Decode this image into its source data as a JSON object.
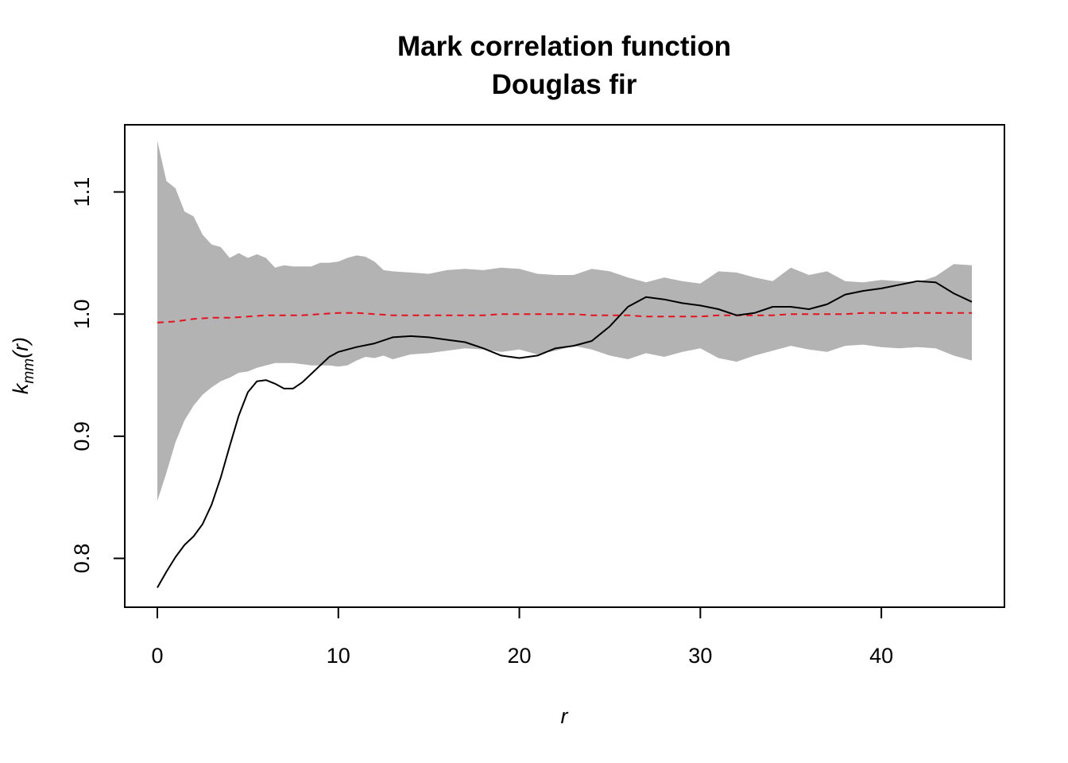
{
  "chart_data": {
    "type": "line",
    "title": "Mark correlation function",
    "subtitle": "Douglas fir",
    "xlabel": "r",
    "ylabel": "k_mm(r)",
    "ylabel_parts": {
      "k": "k",
      "sub": "mm",
      "args": "(r)"
    },
    "xlim": [
      -1.8,
      46.8
    ],
    "ylim": [
      0.76,
      1.155
    ],
    "xticks": [
      0,
      10,
      20,
      30,
      40
    ],
    "xtick_labels": [
      "0",
      "10",
      "20",
      "30",
      "40"
    ],
    "yticks": [
      0.8,
      0.9,
      1.0,
      1.1
    ],
    "ytick_labels": [
      "0.8",
      "0.9",
      "1.0",
      "1.1"
    ],
    "grid": false,
    "colors": {
      "envelope": "#b3b3b3",
      "observed": "#000000",
      "theoretical": "#e8121d"
    },
    "envelope": {
      "x": [
        0,
        0.5,
        1,
        1.5,
        2,
        2.5,
        3,
        3.5,
        4,
        4.5,
        5,
        5.5,
        6,
        6.5,
        7,
        7.5,
        8,
        8.5,
        9,
        9.5,
        10,
        10.5,
        11,
        11.5,
        12,
        12.5,
        13,
        14,
        15,
        16,
        17,
        18,
        19,
        20,
        21,
        22,
        23,
        24,
        25,
        26,
        27,
        28,
        29,
        30,
        31,
        32,
        33,
        34,
        35,
        36,
        37,
        38,
        39,
        40,
        41,
        42,
        43,
        44,
        45
      ],
      "upper": [
        1.142,
        1.109,
        1.103,
        1.084,
        1.08,
        1.065,
        1.057,
        1.055,
        1.046,
        1.05,
        1.046,
        1.049,
        1.046,
        1.038,
        1.04,
        1.039,
        1.039,
        1.039,
        1.042,
        1.042,
        1.043,
        1.046,
        1.048,
        1.047,
        1.043,
        1.036,
        1.035,
        1.034,
        1.033,
        1.036,
        1.037,
        1.036,
        1.038,
        1.037,
        1.033,
        1.032,
        1.032,
        1.037,
        1.035,
        1.03,
        1.026,
        1.03,
        1.027,
        1.025,
        1.035,
        1.034,
        1.03,
        1.027,
        1.038,
        1.032,
        1.035,
        1.027,
        1.026,
        1.028,
        1.027,
        1.026,
        1.031,
        1.041,
        1.04
      ],
      "lower": [
        0.847,
        0.87,
        0.895,
        0.913,
        0.925,
        0.934,
        0.94,
        0.945,
        0.948,
        0.952,
        0.953,
        0.956,
        0.958,
        0.96,
        0.96,
        0.96,
        0.959,
        0.958,
        0.958,
        0.958,
        0.957,
        0.958,
        0.962,
        0.965,
        0.964,
        0.966,
        0.963,
        0.967,
        0.968,
        0.97,
        0.972,
        0.971,
        0.969,
        0.971,
        0.967,
        0.97,
        0.974,
        0.971,
        0.966,
        0.963,
        0.968,
        0.965,
        0.969,
        0.972,
        0.964,
        0.961,
        0.966,
        0.97,
        0.974,
        0.971,
        0.969,
        0.974,
        0.975,
        0.973,
        0.972,
        0.973,
        0.972,
        0.966,
        0.962
      ]
    },
    "series": [
      {
        "x": [
          0,
          0.5,
          1,
          1.5,
          2,
          2.5,
          3,
          3.5,
          4,
          4.5,
          5,
          5.5,
          6,
          6.5,
          7,
          7.5,
          8,
          8.5,
          9,
          9.5,
          10,
          11,
          12,
          13,
          14,
          15,
          16,
          17,
          18,
          19,
          20,
          21,
          22,
          23,
          24,
          25,
          26,
          27,
          28,
          29,
          30,
          31,
          32,
          33,
          34,
          35,
          36,
          37,
          38,
          39,
          40,
          41,
          42,
          43,
          44,
          45
        ],
        "values": [
          0.776,
          0.789,
          0.801,
          0.811,
          0.818,
          0.828,
          0.844,
          0.866,
          0.892,
          0.917,
          0.936,
          0.945,
          0.946,
          0.943,
          0.939,
          0.939,
          0.944,
          0.951,
          0.958,
          0.965,
          0.969,
          0.973,
          0.976,
          0.981,
          0.982,
          0.981,
          0.979,
          0.977,
          0.972,
          0.966,
          0.964,
          0.966,
          0.972,
          0.974,
          0.978,
          0.99,
          1.006,
          1.014,
          1.012,
          1.009,
          1.007,
          1.004,
          0.999,
          1.001,
          1.006,
          1.006,
          1.004,
          1.008,
          1.016,
          1.019,
          1.021,
          1.024,
          1.027,
          1.026,
          1.017,
          1.01
        ]
      },
      {
        "x": [
          0,
          1,
          2,
          3,
          4,
          5,
          6,
          7,
          8,
          9,
          10,
          11,
          12,
          13,
          14,
          15,
          16,
          17,
          18,
          19,
          20,
          21,
          22,
          23,
          24,
          25,
          26,
          27,
          28,
          29,
          30,
          31,
          32,
          33,
          34,
          35,
          36,
          37,
          38,
          39,
          40,
          41,
          42,
          43,
          44,
          45
        ],
        "values": [
          0.993,
          0.994,
          0.996,
          0.997,
          0.997,
          0.998,
          0.999,
          0.999,
          0.999,
          1.0,
          1.001,
          1.001,
          1.0,
          0.999,
          0.999,
          0.999,
          0.999,
          0.999,
          0.999,
          1.0,
          1.0,
          1.0,
          1.0,
          1.0,
          0.999,
          0.999,
          0.999,
          0.998,
          0.998,
          0.998,
          0.998,
          0.999,
          0.999,
          0.999,
          0.999,
          1.0,
          1.0,
          1.0,
          1.0,
          1.001,
          1.001,
          1.001,
          1.001,
          1.001,
          1.001,
          1.001
        ]
      }
    ]
  }
}
